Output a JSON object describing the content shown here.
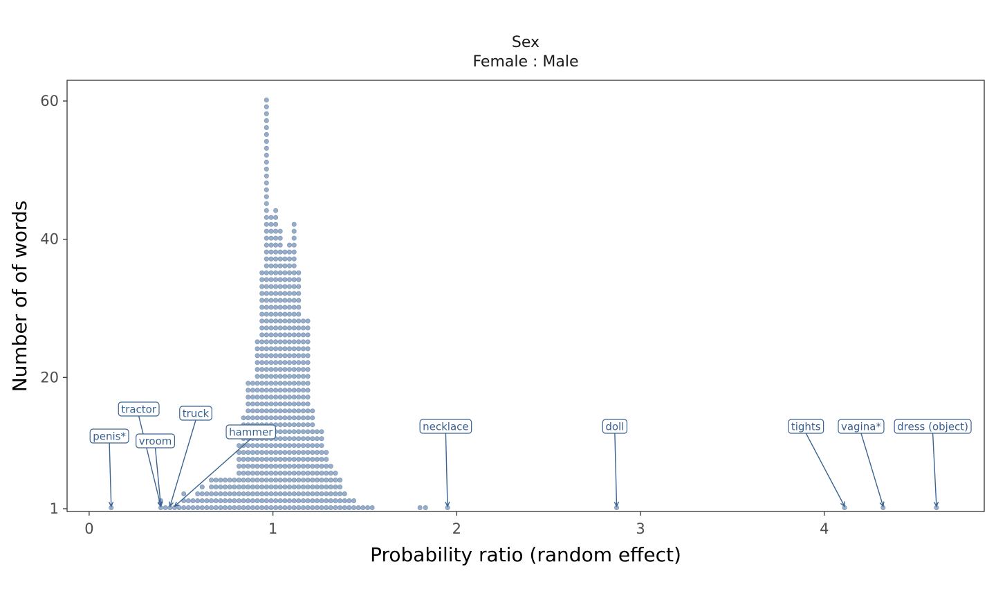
{
  "chart_data": {
    "type": "dotplot",
    "strip_title": [
      "Sex",
      "Female : Male"
    ],
    "xlabel": "Probability ratio (random effect)",
    "ylabel": "Number of of words",
    "xlim": [
      -0.12,
      4.87
    ],
    "ylim": [
      0.6,
      63
    ],
    "x_ticks": [
      0,
      1,
      2,
      3,
      4
    ],
    "y_ticks": [
      1,
      20,
      40,
      60
    ],
    "bin_width": 0.025,
    "bins": [
      {
        "x": 0.12,
        "count": 1
      },
      {
        "x": 0.39,
        "count": 2
      },
      {
        "x": 0.415,
        "count": 1
      },
      {
        "x": 0.44,
        "count": 1
      },
      {
        "x": 0.465,
        "count": 1
      },
      {
        "x": 0.49,
        "count": 1
      },
      {
        "x": 0.515,
        "count": 3
      },
      {
        "x": 0.54,
        "count": 2
      },
      {
        "x": 0.565,
        "count": 2
      },
      {
        "x": 0.59,
        "count": 3
      },
      {
        "x": 0.615,
        "count": 4
      },
      {
        "x": 0.64,
        "count": 3
      },
      {
        "x": 0.665,
        "count": 5
      },
      {
        "x": 0.69,
        "count": 5
      },
      {
        "x": 0.715,
        "count": 5
      },
      {
        "x": 0.74,
        "count": 5
      },
      {
        "x": 0.765,
        "count": 5
      },
      {
        "x": 0.79,
        "count": 5
      },
      {
        "x": 0.815,
        "count": 10
      },
      {
        "x": 0.84,
        "count": 14
      },
      {
        "x": 0.865,
        "count": 19
      },
      {
        "x": 0.89,
        "count": 19
      },
      {
        "x": 0.915,
        "count": 25
      },
      {
        "x": 0.94,
        "count": 35
      },
      {
        "x": 0.965,
        "count": 60
      },
      {
        "x": 0.99,
        "count": 43
      },
      {
        "x": 1.015,
        "count": 44
      },
      {
        "x": 1.04,
        "count": 41
      },
      {
        "x": 1.065,
        "count": 38
      },
      {
        "x": 1.09,
        "count": 39
      },
      {
        "x": 1.115,
        "count": 42
      },
      {
        "x": 1.14,
        "count": 35
      },
      {
        "x": 1.165,
        "count": 28
      },
      {
        "x": 1.19,
        "count": 28
      },
      {
        "x": 1.215,
        "count": 15
      },
      {
        "x": 1.24,
        "count": 12
      },
      {
        "x": 1.265,
        "count": 12
      },
      {
        "x": 1.29,
        "count": 9
      },
      {
        "x": 1.315,
        "count": 7
      },
      {
        "x": 1.34,
        "count": 6
      },
      {
        "x": 1.365,
        "count": 5
      },
      {
        "x": 1.39,
        "count": 3
      },
      {
        "x": 1.415,
        "count": 2
      },
      {
        "x": 1.44,
        "count": 2
      },
      {
        "x": 1.465,
        "count": 1
      },
      {
        "x": 1.49,
        "count": 1
      },
      {
        "x": 1.515,
        "count": 1
      },
      {
        "x": 1.54,
        "count": 1
      },
      {
        "x": 1.8,
        "count": 1
      },
      {
        "x": 1.83,
        "count": 1
      },
      {
        "x": 1.95,
        "count": 1
      },
      {
        "x": 2.87,
        "count": 1
      },
      {
        "x": 4.11,
        "count": 1
      },
      {
        "x": 4.32,
        "count": 1
      },
      {
        "x": 4.61,
        "count": 1
      }
    ],
    "annotations": [
      {
        "label": "penis*",
        "x": 0.11,
        "point_x": 0.12
      },
      {
        "label": "tractor",
        "x": 0.27,
        "point_x": 0.39
      },
      {
        "label": "vroom",
        "x": 0.36,
        "point_x": 0.39
      },
      {
        "label": "truck",
        "x": 0.58,
        "point_x": 0.44
      },
      {
        "label": "hammer",
        "x": 0.88,
        "point_x": 0.465
      },
      {
        "label": "necklace",
        "x": 1.94,
        "point_x": 1.95
      },
      {
        "label": "doll",
        "x": 2.86,
        "point_x": 2.87
      },
      {
        "label": "tights",
        "x": 3.9,
        "point_x": 4.11
      },
      {
        "label": "vagina*",
        "x": 4.2,
        "point_x": 4.32
      },
      {
        "label": "dress (object)",
        "x": 4.59,
        "point_x": 4.61
      }
    ]
  }
}
